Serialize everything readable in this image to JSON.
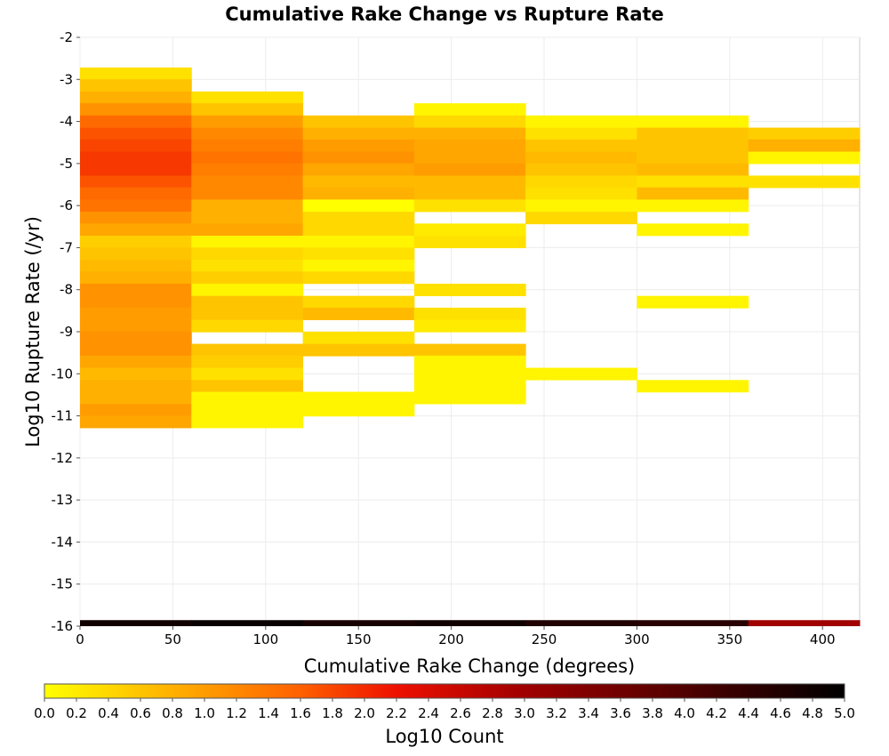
{
  "chart_data": {
    "type": "heatmap",
    "title": "Cumulative Rake Change vs Rupture Rate",
    "xlabel": "Cumulative Rake Change (degrees)",
    "ylabel": "Log10 Rupture Rate (/yr)",
    "xlim": [
      0,
      420
    ],
    "ylim": [
      -16,
      -2
    ],
    "x_ticks": [
      "0",
      "50",
      "100",
      "150",
      "200",
      "250",
      "300",
      "350",
      "400"
    ],
    "y_ticks": [
      "-2",
      "-3",
      "-4",
      "-5",
      "-6",
      "-7",
      "-8",
      "-9",
      "-10",
      "-11",
      "-12",
      "-13",
      "-14",
      "-15",
      "-16"
    ],
    "x_bin_width": 60,
    "y_bin_height": 0.2857,
    "grid": true,
    "colorbar": {
      "label": "Log10 Count",
      "min": 0.0,
      "max": 5.0,
      "ticks": [
        "0.0",
        "0.2",
        "0.4",
        "0.6",
        "0.8",
        "1.0",
        "1.2",
        "1.4",
        "1.6",
        "1.8",
        "2.0",
        "2.2",
        "2.4",
        "2.6",
        "2.8",
        "3.0",
        "3.2",
        "3.4",
        "3.6",
        "3.8",
        "4.0",
        "4.2",
        "4.4",
        "4.6",
        "4.8",
        "5.0"
      ],
      "stops": [
        {
          "v": 0.0,
          "color": "#ffff00"
        },
        {
          "v": 0.8,
          "color": "#ffb000"
        },
        {
          "v": 1.6,
          "color": "#ff6000"
        },
        {
          "v": 2.2,
          "color": "#ee1000"
        },
        {
          "v": 3.0,
          "color": "#a00000"
        },
        {
          "v": 4.2,
          "color": "#400000"
        },
        {
          "v": 5.0,
          "color": "#000000"
        }
      ]
    },
    "columns": [
      {
        "x0": 0,
        "cells": [
          {
            "y": -2.86,
            "v": 0.3
          },
          {
            "y": -3.14,
            "v": 0.6
          },
          {
            "y": -3.43,
            "v": 0.8
          },
          {
            "y": -3.71,
            "v": 1.1
          },
          {
            "y": -4.0,
            "v": 1.5
          },
          {
            "y": -4.29,
            "v": 1.7
          },
          {
            "y": -4.57,
            "v": 1.8
          },
          {
            "y": -4.86,
            "v": 1.9
          },
          {
            "y": -5.14,
            "v": 1.9
          },
          {
            "y": -5.43,
            "v": 1.7
          },
          {
            "y": -5.71,
            "v": 1.5
          },
          {
            "y": -6.0,
            "v": 1.4
          },
          {
            "y": -6.29,
            "v": 1.1
          },
          {
            "y": -6.57,
            "v": 0.9
          },
          {
            "y": -6.86,
            "v": 0.5
          },
          {
            "y": -7.14,
            "v": 0.6
          },
          {
            "y": -7.43,
            "v": 0.7
          },
          {
            "y": -7.71,
            "v": 0.8
          },
          {
            "y": -8.0,
            "v": 1.1
          },
          {
            "y": -8.29,
            "v": 1.1
          },
          {
            "y": -8.57,
            "v": 1.0
          },
          {
            "y": -8.86,
            "v": 1.0
          },
          {
            "y": -9.14,
            "v": 1.1
          },
          {
            "y": -9.43,
            "v": 1.1
          },
          {
            "y": -9.71,
            "v": 0.9
          },
          {
            "y": -10.0,
            "v": 0.7
          },
          {
            "y": -10.29,
            "v": 0.8
          },
          {
            "y": -10.57,
            "v": 0.8
          },
          {
            "y": -10.86,
            "v": 1.0
          },
          {
            "y": -11.14,
            "v": 0.9
          }
        ]
      },
      {
        "x0": 60,
        "cells": [
          {
            "y": -3.43,
            "v": 0.3
          },
          {
            "y": -3.71,
            "v": 0.6
          },
          {
            "y": -4.0,
            "v": 1.0
          },
          {
            "y": -4.29,
            "v": 1.2
          },
          {
            "y": -4.57,
            "v": 1.3
          },
          {
            "y": -4.86,
            "v": 1.4
          },
          {
            "y": -5.14,
            "v": 1.3
          },
          {
            "y": -5.43,
            "v": 1.2
          },
          {
            "y": -5.71,
            "v": 1.2
          },
          {
            "y": -6.0,
            "v": 0.8
          },
          {
            "y": -6.29,
            "v": 0.8
          },
          {
            "y": -6.57,
            "v": 0.9
          },
          {
            "y": -6.86,
            "v": 0.1
          },
          {
            "y": -7.14,
            "v": 0.4
          },
          {
            "y": -7.43,
            "v": 0.3
          },
          {
            "y": -7.71,
            "v": 0.5
          },
          {
            "y": -8.0,
            "v": 0.1
          },
          {
            "y": -8.29,
            "v": 0.6
          },
          {
            "y": -8.57,
            "v": 0.6
          },
          {
            "y": -8.86,
            "v": 0.4
          },
          {
            "y": -9.43,
            "v": 0.6
          },
          {
            "y": -9.71,
            "v": 0.5
          },
          {
            "y": -10.0,
            "v": 0.3
          },
          {
            "y": -10.29,
            "v": 0.6
          },
          {
            "y": -10.57,
            "v": 0.1
          },
          {
            "y": -10.86,
            "v": 0.1
          },
          {
            "y": -11.14,
            "v": 0.1
          }
        ]
      },
      {
        "x0": 120,
        "cells": [
          {
            "y": -4.0,
            "v": 0.6
          },
          {
            "y": -4.29,
            "v": 0.8
          },
          {
            "y": -4.57,
            "v": 1.0
          },
          {
            "y": -4.86,
            "v": 1.1
          },
          {
            "y": -5.14,
            "v": 0.9
          },
          {
            "y": -5.43,
            "v": 0.7
          },
          {
            "y": -5.71,
            "v": 0.8
          },
          {
            "y": -6.0,
            "v": 0.0
          },
          {
            "y": -6.29,
            "v": 0.4
          },
          {
            "y": -6.57,
            "v": 0.4
          },
          {
            "y": -6.86,
            "v": 0.1
          },
          {
            "y": -7.14,
            "v": 0.3
          },
          {
            "y": -7.43,
            "v": 0.1
          },
          {
            "y": -7.71,
            "v": 0.4
          },
          {
            "y": -8.29,
            "v": 0.4
          },
          {
            "y": -8.57,
            "v": 0.7
          },
          {
            "y": -9.14,
            "v": 0.3
          },
          {
            "y": -9.43,
            "v": 0.6
          },
          {
            "y": -10.57,
            "v": 0.1
          },
          {
            "y": -10.86,
            "v": 0.1
          }
        ]
      },
      {
        "x0": 180,
        "cells": [
          {
            "y": -3.71,
            "v": 0.1
          },
          {
            "y": -4.0,
            "v": 0.4
          },
          {
            "y": -4.29,
            "v": 0.8
          },
          {
            "y": -4.57,
            "v": 0.9
          },
          {
            "y": -4.86,
            "v": 0.9
          },
          {
            "y": -5.14,
            "v": 1.0
          },
          {
            "y": -5.43,
            "v": 0.7
          },
          {
            "y": -5.71,
            "v": 0.7
          },
          {
            "y": -6.0,
            "v": 0.3
          },
          {
            "y": -6.57,
            "v": 0.2
          },
          {
            "y": -6.86,
            "v": 0.3
          },
          {
            "y": -8.0,
            "v": 0.3
          },
          {
            "y": -8.57,
            "v": 0.3
          },
          {
            "y": -8.86,
            "v": 0.2
          },
          {
            "y": -9.43,
            "v": 0.6
          },
          {
            "y": -9.71,
            "v": 0.1
          },
          {
            "y": -10.0,
            "v": 0.1
          },
          {
            "y": -10.29,
            "v": 0.1
          },
          {
            "y": -10.57,
            "v": 0.1
          }
        ]
      },
      {
        "x0": 240,
        "cells": [
          {
            "y": -4.0,
            "v": 0.1
          },
          {
            "y": -4.29,
            "v": 0.3
          },
          {
            "y": -4.57,
            "v": 0.6
          },
          {
            "y": -4.86,
            "v": 0.7
          },
          {
            "y": -5.14,
            "v": 0.6
          },
          {
            "y": -5.43,
            "v": 0.4
          },
          {
            "y": -5.71,
            "v": 0.3
          },
          {
            "y": -6.0,
            "v": 0.1
          },
          {
            "y": -6.29,
            "v": 0.4
          },
          {
            "y": -10.0,
            "v": 0.1
          }
        ]
      },
      {
        "x0": 300,
        "cells": [
          {
            "y": -4.0,
            "v": 0.1
          },
          {
            "y": -4.29,
            "v": 0.6
          },
          {
            "y": -4.57,
            "v": 0.6
          },
          {
            "y": -4.86,
            "v": 0.6
          },
          {
            "y": -5.14,
            "v": 0.7
          },
          {
            "y": -5.43,
            "v": 0.3
          },
          {
            "y": -5.71,
            "v": 0.7
          },
          {
            "y": -6.0,
            "v": 0.1
          },
          {
            "y": -6.57,
            "v": 0.1
          },
          {
            "y": -8.29,
            "v": 0.1
          },
          {
            "y": -10.29,
            "v": 0.1
          }
        ]
      },
      {
        "x0": 360,
        "cells": [
          {
            "y": -4.29,
            "v": 0.5
          },
          {
            "y": -4.57,
            "v": 0.8
          },
          {
            "y": -4.86,
            "v": 0.1
          },
          {
            "y": -5.43,
            "v": 0.3
          }
        ]
      }
    ],
    "bottom_row": {
      "y": -16.0,
      "values": [
        4.8,
        4.9,
        4.7,
        4.8,
        4.6,
        4.5,
        3.0
      ]
    }
  }
}
